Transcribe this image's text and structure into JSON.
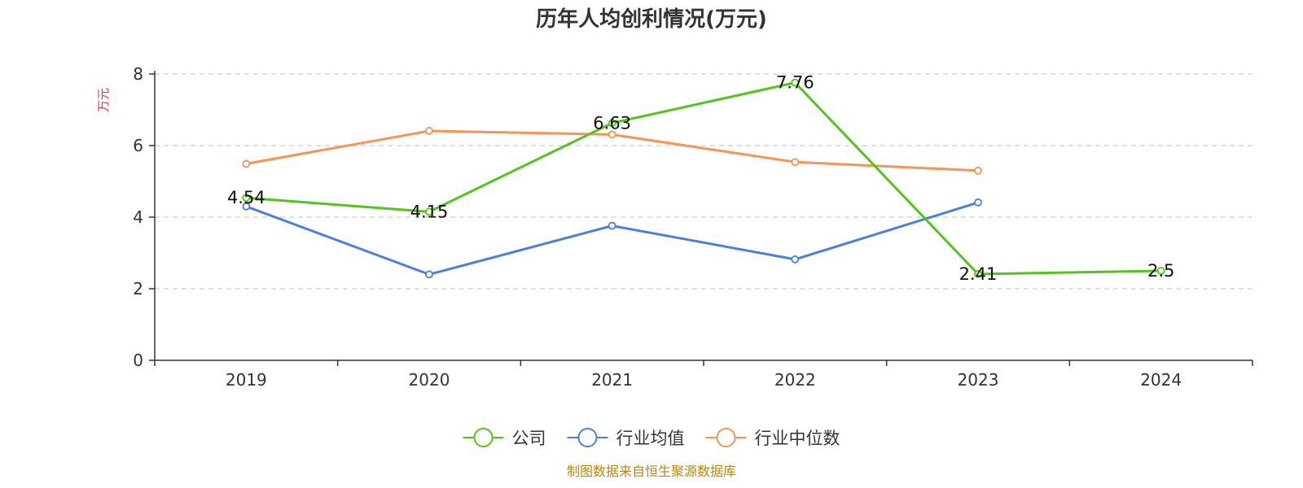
{
  "chart_data": {
    "type": "line",
    "title": "历年人均创利情况(万元)",
    "ylabel": "万元",
    "ylim": [
      0,
      8
    ],
    "yticks": [
      0,
      2,
      4,
      6,
      8
    ],
    "categories": [
      "2019",
      "2020",
      "2021",
      "2022",
      "2023",
      "2024"
    ],
    "grid": true,
    "legend_position": "bottom",
    "series": [
      {
        "name": "公司",
        "color": "#52c41a",
        "values": [
          4.54,
          4.15,
          6.63,
          7.76,
          2.41,
          2.5
        ],
        "show_labels": true
      },
      {
        "name": "行业均值",
        "color": "#4a7fdc",
        "values": [
          4.3,
          2.4,
          3.76,
          2.82,
          4.41,
          null
        ],
        "show_labels": false
      },
      {
        "name": "行业中位数",
        "color": "#f79355",
        "values": [
          5.49,
          6.41,
          6.31,
          5.54,
          5.3,
          null
        ],
        "show_labels": false
      }
    ],
    "source_note": "制图数据来自恒生聚源数据库"
  },
  "colors": {
    "axis": "#333333",
    "grid": "#cccccc",
    "ylabel": "#e0313a",
    "source_note": "#b8860b"
  }
}
